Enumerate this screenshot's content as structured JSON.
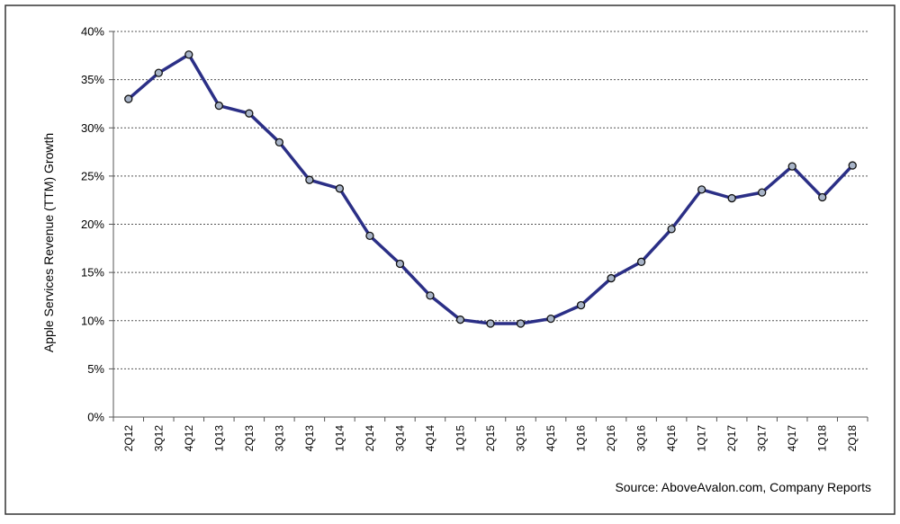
{
  "chart_data": {
    "type": "line",
    "ylabel": "Apple Services Revenue (TTM) Growth",
    "xlabel": "",
    "source": "Source: AboveAvalon.com, Company Reports",
    "categories": [
      "2Q12",
      "3Q12",
      "4Q12",
      "1Q13",
      "2Q13",
      "3Q13",
      "4Q13",
      "1Q14",
      "2Q14",
      "3Q14",
      "4Q14",
      "1Q15",
      "2Q15",
      "3Q15",
      "4Q15",
      "1Q16",
      "2Q16",
      "3Q16",
      "4Q16",
      "1Q17",
      "2Q17",
      "3Q17",
      "4Q17",
      "1Q18",
      "2Q18"
    ],
    "series": [
      {
        "values": [
          33.0,
          35.7,
          37.6,
          32.3,
          31.5,
          28.5,
          24.6,
          23.7,
          18.8,
          15.9,
          12.6,
          10.1,
          9.7,
          9.7,
          10.2,
          11.6,
          14.4,
          16.1,
          19.5,
          23.6,
          22.7,
          23.3,
          26.0,
          22.8,
          26.1
        ],
        "color": "#2b2f86",
        "marker_color": "#a8b4c8"
      }
    ],
    "ylim": [
      0,
      40
    ],
    "yticks": [
      "0%",
      "5%",
      "10%",
      "15%",
      "20%",
      "25%",
      "30%",
      "35%",
      "40%"
    ],
    "grid": true,
    "legend": "none"
  }
}
